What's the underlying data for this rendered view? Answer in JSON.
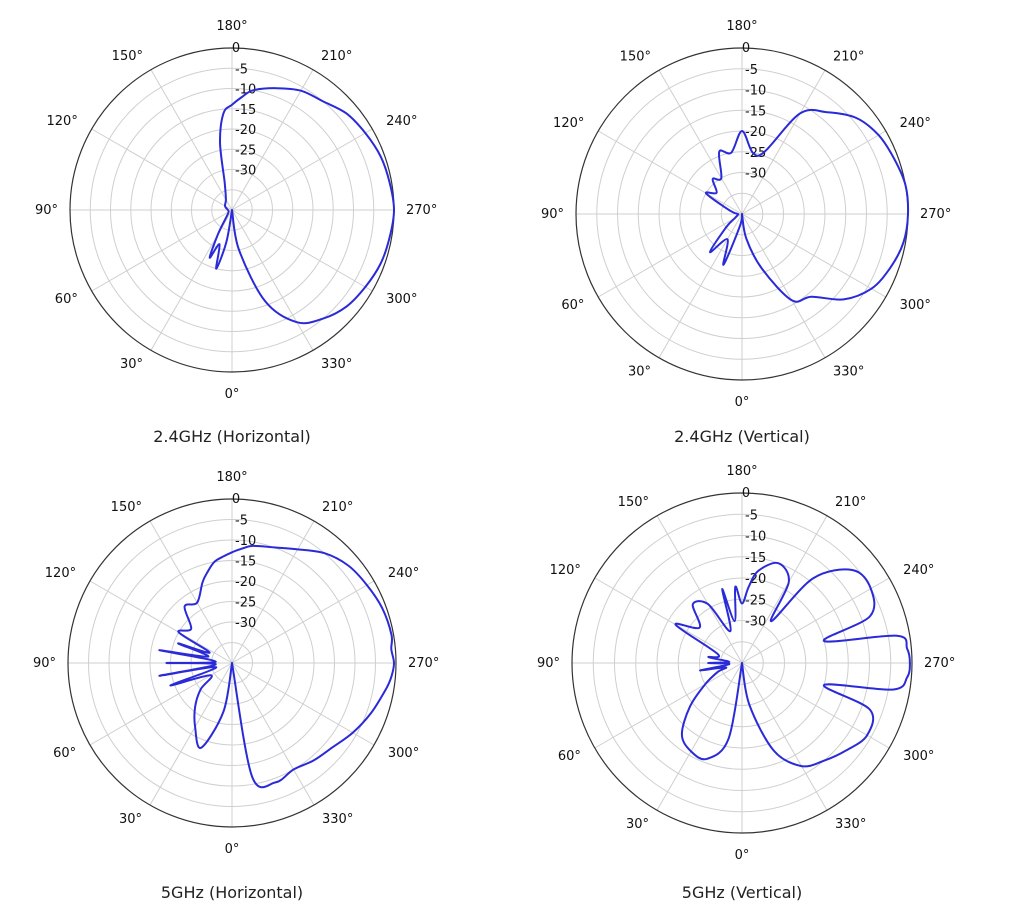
{
  "chart_data": [
    {
      "type": "polar-line",
      "caption": "2.4GHz (Horizontal)",
      "angle_ticks": [
        0,
        30,
        60,
        90,
        120,
        150,
        180,
        210,
        240,
        270,
        300,
        330
      ],
      "angle_tick_labels": [
        "0°",
        "30°",
        "60°",
        "90°",
        "120°",
        "150°",
        "180°",
        "210°",
        "240°",
        "270°",
        "300°",
        "330°"
      ],
      "r_ticks": [
        0,
        -5,
        -10,
        -15,
        -20,
        -25,
        -30
      ],
      "r_tick_labels": [
        "0",
        "-5",
        "-10",
        "-15",
        "-20",
        "-25",
        "-30"
      ],
      "rlim": [
        -40,
        0
      ],
      "grid": true,
      "series": [
        {
          "color": "#2a2ad8",
          "angle_deg": [
            0,
            10,
            15,
            20,
            25,
            30,
            40,
            60,
            90,
            120,
            150,
            165,
            170,
            175,
            180,
            185,
            190,
            200,
            210,
            220,
            230,
            240,
            250,
            260,
            270,
            280,
            290,
            300,
            310,
            320,
            330,
            340,
            350,
            360
          ],
          "value_db": [
            -40,
            -32,
            -25,
            -31,
            -27,
            -33,
            -38,
            -39,
            -39,
            -38,
            -37,
            -33,
            -23,
            -16,
            -14,
            -12,
            -10,
            -8,
            -6,
            -5,
            -3,
            -2,
            -1,
            -0.5,
            0,
            -0.5,
            -1,
            -2,
            -3,
            -5,
            -8,
            -16,
            -30,
            -40
          ]
        }
      ]
    },
    {
      "type": "polar-line",
      "caption": "2.4GHz (Vertical)",
      "angle_ticks": [
        0,
        30,
        60,
        90,
        120,
        150,
        180,
        210,
        240,
        270,
        300,
        330
      ],
      "angle_tick_labels": [
        "0°",
        "30°",
        "60°",
        "90°",
        "120°",
        "150°",
        "180°",
        "210°",
        "240°",
        "270°",
        "300°",
        "330°"
      ],
      "r_ticks": [
        0,
        -5,
        -10,
        -15,
        -20,
        -25,
        -30
      ],
      "r_tick_labels": [
        "0",
        "-5",
        "-10",
        "-15",
        "-20",
        "-25",
        "-30"
      ],
      "rlim": [
        -40,
        0
      ],
      "grid": true,
      "series": [
        {
          "color": "#2a2ad8",
          "angle_deg": [
            0,
            10,
            20,
            30,
            40,
            50,
            60,
            80,
            90,
            100,
            110,
            120,
            130,
            140,
            150,
            160,
            170,
            180,
            190,
            200,
            210,
            220,
            230,
            240,
            250,
            260,
            270,
            280,
            290,
            300,
            310,
            320,
            330,
            340,
            350,
            360
          ],
          "value_db": [
            -40,
            -37,
            -27,
            -33,
            -28,
            -35,
            -38,
            -39,
            -39,
            -38,
            -36,
            -30,
            -32,
            -29,
            -30,
            -24,
            -25,
            -20,
            -25,
            -24,
            -12,
            -8,
            -4,
            -2,
            -1,
            0,
            0,
            -0.5,
            -2,
            -4,
            -8,
            -14,
            -16,
            -26,
            -34,
            -40
          ]
        }
      ]
    },
    {
      "type": "polar-line",
      "caption": "5GHz (Horizontal)",
      "angle_ticks": [
        0,
        30,
        60,
        90,
        120,
        150,
        180,
        210,
        240,
        270,
        300,
        330
      ],
      "angle_tick_labels": [
        "0°",
        "30°",
        "60°",
        "90°",
        "120°",
        "150°",
        "180°",
        "210°",
        "240°",
        "270°",
        "300°",
        "330°"
      ],
      "r_ticks": [
        0,
        -5,
        -10,
        -15,
        -20,
        -25,
        -30
      ],
      "r_tick_labels": [
        "0",
        "-5",
        "-10",
        "-15",
        "-20",
        "-25",
        "-30"
      ],
      "rlim": [
        -40,
        0
      ],
      "grid": true,
      "series": [
        {
          "color": "#2a2ad8",
          "angle_deg": [
            0,
            10,
            20,
            30,
            40,
            50,
            60,
            70,
            75,
            80,
            85,
            90,
            95,
            100,
            105,
            110,
            115,
            120,
            130,
            140,
            150,
            160,
            165,
            170,
            175,
            180,
            185,
            190,
            200,
            210,
            220,
            230,
            240,
            250,
            260,
            265,
            270,
            275,
            280,
            290,
            300,
            310,
            320,
            330,
            340,
            350,
            360
          ],
          "value_db": [
            -40,
            -28,
            -18,
            -22,
            -26,
            -30,
            -34,
            -24,
            -36,
            -22,
            -36,
            -24,
            -36,
            -22,
            -34,
            -26,
            -34,
            -25,
            -27,
            -22,
            -23,
            -19,
            -17,
            -15,
            -14,
            -13,
            -12,
            -11,
            -10,
            -8,
            -5,
            -3,
            -2,
            -1,
            -0.5,
            -1,
            -0.5,
            -1,
            -2,
            -4,
            -6,
            -8,
            -9,
            -10,
            -9,
            -12,
            -40
          ]
        }
      ]
    },
    {
      "type": "polar-line",
      "caption": "5GHz (Vertical)",
      "angle_ticks": [
        0,
        30,
        60,
        90,
        120,
        150,
        180,
        210,
        240,
        270,
        300,
        330
      ],
      "angle_tick_labels": [
        "0°",
        "30°",
        "60°",
        "90°",
        "120°",
        "150°",
        "180°",
        "210°",
        "240°",
        "270°",
        "300°",
        "330°"
      ],
      "r_ticks": [
        0,
        -5,
        -10,
        -15,
        -20,
        -25,
        -30
      ],
      "r_tick_labels": [
        "0",
        "-5",
        "-10",
        "-15",
        "-20",
        "-25",
        "-30"
      ],
      "rlim": [
        -40,
        0
      ],
      "grid": true,
      "series": [
        {
          "color": "#2a2ad8",
          "angle_deg": [
            0,
            10,
            20,
            30,
            40,
            50,
            60,
            70,
            75,
            80,
            85,
            90,
            95,
            100,
            110,
            120,
            130,
            140,
            150,
            160,
            165,
            170,
            175,
            180,
            185,
            190,
            200,
            210,
            215,
            220,
            230,
            240,
            250,
            255,
            260,
            265,
            270,
            275,
            280,
            285,
            290,
            300,
            310,
            320,
            330,
            340,
            350,
            360
          ],
          "value_db": [
            -40,
            -22,
            -16,
            -16,
            -18,
            -24,
            -30,
            -34,
            -36,
            -30,
            -37,
            -32,
            -37,
            -32,
            -34,
            -22,
            -27,
            -22,
            -24,
            -32,
            -22,
            -30,
            -22,
            -26,
            -22,
            -18,
            -15,
            -18,
            -28,
            -14,
            -6,
            -5,
            -8,
            -20,
            -3,
            -1,
            -0.5,
            -1,
            -4,
            -20,
            -8,
            -6,
            -8,
            -10,
            -12,
            -18,
            -30,
            -40
          ]
        }
      ]
    }
  ]
}
